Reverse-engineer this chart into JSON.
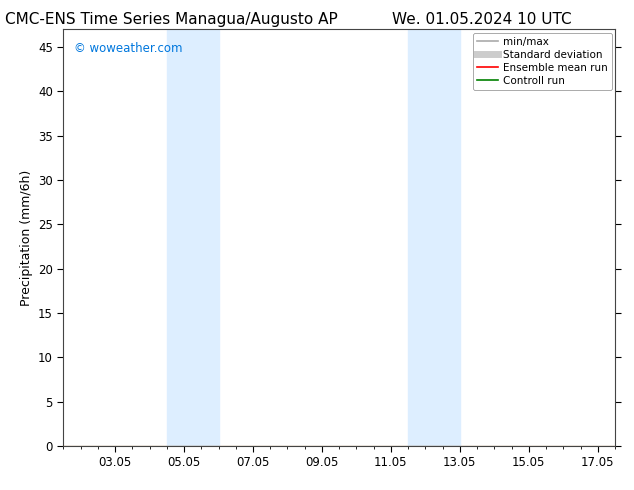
{
  "title": "CMC-ENS Time Series Managua/Augusto AP",
  "title_right": "We. 01.05.2024 10 UTC",
  "ylabel": "Precipitation (mm/6h)",
  "watermark": "© woweather.com",
  "watermark_color": "#0077dd",
  "xlim": [
    1.5,
    17.5
  ],
  "ylim": [
    0,
    47
  ],
  "yticks": [
    0,
    5,
    10,
    15,
    20,
    25,
    30,
    35,
    40,
    45
  ],
  "xtick_labels": [
    "03.05",
    "05.05",
    "07.05",
    "09.05",
    "11.05",
    "13.05",
    "15.05",
    "17.05"
  ],
  "xtick_positions": [
    3,
    5,
    7,
    9,
    11,
    13,
    15,
    17
  ],
  "shade_regions": [
    {
      "xmin": 4.5,
      "xmax": 6.0,
      "color": "#ddeeff"
    },
    {
      "xmin": 11.5,
      "xmax": 13.0,
      "color": "#ddeeff"
    }
  ],
  "bg_color": "#ffffff",
  "plot_bg_color": "#ffffff",
  "legend_entries": [
    {
      "label": "min/max",
      "color": "#aaaaaa",
      "lw": 1.2,
      "style": "solid"
    },
    {
      "label": "Standard deviation",
      "color": "#cccccc",
      "lw": 5,
      "style": "solid"
    },
    {
      "label": "Ensemble mean run",
      "color": "#ff0000",
      "lw": 1.2,
      "style": "solid"
    },
    {
      "label": "Controll run",
      "color": "#008000",
      "lw": 1.2,
      "style": "solid"
    }
  ],
  "title_fontsize": 11,
  "tick_fontsize": 8.5,
  "ylabel_fontsize": 9,
  "legend_fontsize": 7.5,
  "watermark_fontsize": 8.5
}
